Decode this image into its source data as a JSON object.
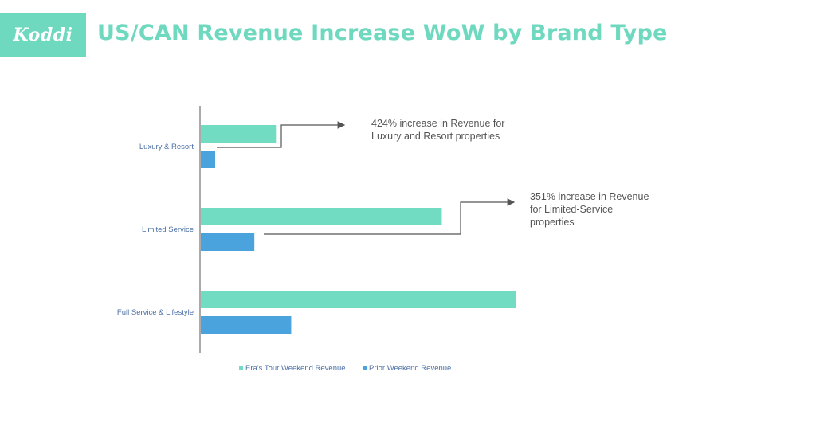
{
  "header": {
    "logo_text": "Koddi",
    "title": "US/CAN Revenue Increase WoW by Brand Type"
  },
  "colors": {
    "brand": "#6fd9c0",
    "era_series": "#72dcc2",
    "prior_series": "#4aa3dc",
    "label": "#4a6fa5",
    "annotation": "#555555",
    "axis": "#555555"
  },
  "chart_data": {
    "type": "bar",
    "orientation": "horizontal",
    "categories": [
      "Luxury & Resort",
      "Limited Service",
      "Full Service & Lifestyle"
    ],
    "series": [
      {
        "name": "Era's Tour Weekend Revenue",
        "values": [
          4.24,
          13.6,
          17.8
        ]
      },
      {
        "name": "Prior Weekend Revenue",
        "values": [
          0.81,
          3.02,
          5.1
        ]
      }
    ],
    "xlim": [
      0,
      20
    ],
    "grid": false,
    "legend": "bottom",
    "annotations": [
      {
        "lines": [
          "424% increase in Revenue for",
          "Luxury and Resort properties"
        ],
        "category": "Luxury & Resort"
      },
      {
        "lines": [
          "351% increase in Revenue",
          "for Limited-Service",
          "properties"
        ],
        "category": "Limited Service"
      }
    ]
  }
}
